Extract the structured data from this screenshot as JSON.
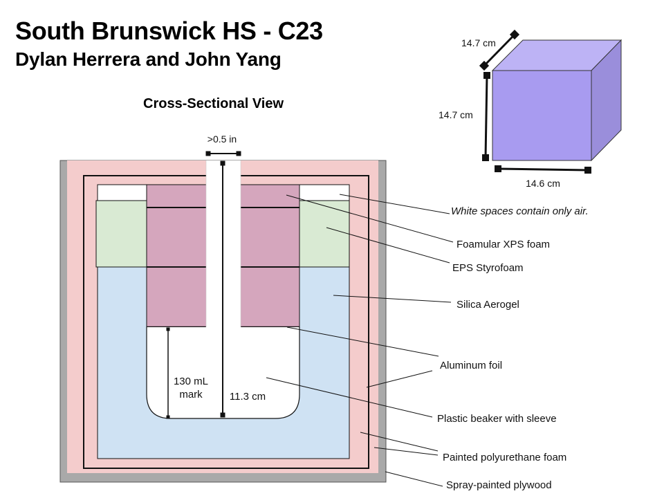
{
  "header": {
    "title": "South Brunswick HS - C23",
    "subtitle": "Dylan Herrera and John Yang",
    "section_heading": "Cross-Sectional View"
  },
  "cube": {
    "depth_label": "14.7 cm",
    "height_label": "14.7 cm",
    "width_label": "14.6 cm",
    "colors": {
      "front": "#a89bf0",
      "top": "#bdb3f5",
      "side": "#9a8edb"
    }
  },
  "cross_section": {
    "rod_gap_label": ">0.5 in",
    "beaker_mark_label_line1": "130 mL",
    "beaker_mark_label_line2": "mark",
    "rod_length_label": "11.3 cm"
  },
  "legend": {
    "air_note": "White spaces contain only air.",
    "xps": "Foamular XPS foam",
    "eps": "EPS Styrofoam",
    "aerogel": "Silica Aerogel",
    "foil": "Aluminum foil",
    "beaker": "Plastic beaker with sleeve",
    "polyurethane": "Painted polyurethane foam",
    "plywood": "Spray-painted plywood"
  },
  "colors": {
    "plywood": "#a9a9a9",
    "polyurethane": "#f4cccc",
    "aerogel": "#cfe2f3",
    "eps": "#d9ead3",
    "xps": "#d5a6bd",
    "air": "#ffffff"
  }
}
